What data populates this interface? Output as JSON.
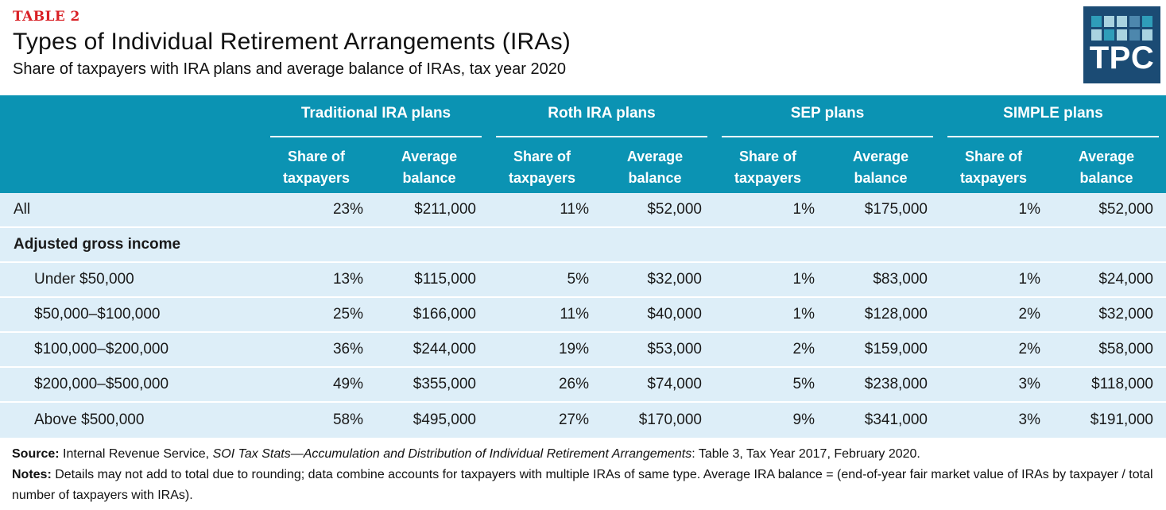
{
  "page": {
    "table_label": "TABLE 2",
    "title": "Types of Individual Retirement Arrangements (IRAs)",
    "subtitle": "Share of taxpayers with IRA plans and average balance of IRAs, tax year 2020"
  },
  "logo": {
    "text": "TPC",
    "bg_color": "#1B4B74",
    "square_colors": {
      "teal": "#2F9DB9",
      "light": "#A9D3E0",
      "medium": "#4D87AD"
    },
    "squares": [
      "teal",
      "light",
      "light",
      "medium",
      "teal",
      "light",
      "teal",
      "light",
      "medium",
      "light"
    ]
  },
  "colors": {
    "header_bg": "#0B93B3",
    "row_bg": "#DDEEF8",
    "table_label_red": "#D92025",
    "text": "#111111"
  },
  "table_header": {
    "groups": [
      "Traditional IRA plans",
      "Roth IRA plans",
      "SEP plans",
      "SIMPLE plans"
    ],
    "share_label": "Share of\ntaxpayers",
    "balance_label": "Average\nbalance"
  },
  "chart_data": {
    "type": "table",
    "title": "Types of Individual Retirement Arrangements (IRAs)",
    "subtitle": "Share of taxpayers with IRA plans and average balance of IRAs, tax year 2020",
    "column_groups": [
      "Traditional IRA plans",
      "Roth IRA plans",
      "SEP plans",
      "SIMPLE plans"
    ],
    "columns": [
      "Share of taxpayers",
      "Average balance",
      "Share of taxpayers",
      "Average balance",
      "Share of taxpayers",
      "Average balance",
      "Share of taxpayers",
      "Average balance"
    ],
    "rows": [
      {
        "label": "All",
        "indent": 0,
        "section": false,
        "values": [
          "23%",
          "$211,000",
          "11%",
          "$52,000",
          "1%",
          "$175,000",
          "1%",
          "$52,000"
        ]
      },
      {
        "label": "Adjusted gross income",
        "indent": 0,
        "section": true,
        "values": [
          "",
          "",
          "",
          "",
          "",
          "",
          "",
          ""
        ]
      },
      {
        "label": "Under $50,000",
        "indent": 1,
        "section": false,
        "values": [
          "13%",
          "$115,000",
          "5%",
          "$32,000",
          "1%",
          "$83,000",
          "1%",
          "$24,000"
        ]
      },
      {
        "label": "$50,000–$100,000",
        "indent": 1,
        "section": false,
        "values": [
          "25%",
          "$166,000",
          "11%",
          "$40,000",
          "1%",
          "$128,000",
          "2%",
          "$32,000"
        ]
      },
      {
        "label": "$100,000–$200,000",
        "indent": 1,
        "section": false,
        "values": [
          "36%",
          "$244,000",
          "19%",
          "$53,000",
          "2%",
          "$159,000",
          "2%",
          "$58,000"
        ]
      },
      {
        "label": "$200,000–$500,000",
        "indent": 1,
        "section": false,
        "values": [
          "49%",
          "$355,000",
          "26%",
          "$74,000",
          "5%",
          "$238,000",
          "3%",
          "$118,000"
        ]
      },
      {
        "label": "Above $500,000",
        "indent": 1,
        "section": false,
        "values": [
          "58%",
          "$495,000",
          "27%",
          "$170,000",
          "9%",
          "$341,000",
          "3%",
          "$191,000"
        ]
      }
    ]
  },
  "footer": {
    "source_label": "Source:",
    "source_pre": " Internal Revenue Service, ",
    "source_italic": "SOI Tax Stats—Accumulation and Distribution of Individual Retirement Arrangements",
    "source_post": ": Table 3, Tax Year 2017, February 2020.",
    "notes_label": "Notes:",
    "notes_text": " Details may not add to total due to rounding; data combine accounts for taxpayers with multiple IRAs of same type. Average IRA balance = (end-of-year fair market value of IRAs by taxpayer / total number of taxpayers with IRAs)."
  }
}
